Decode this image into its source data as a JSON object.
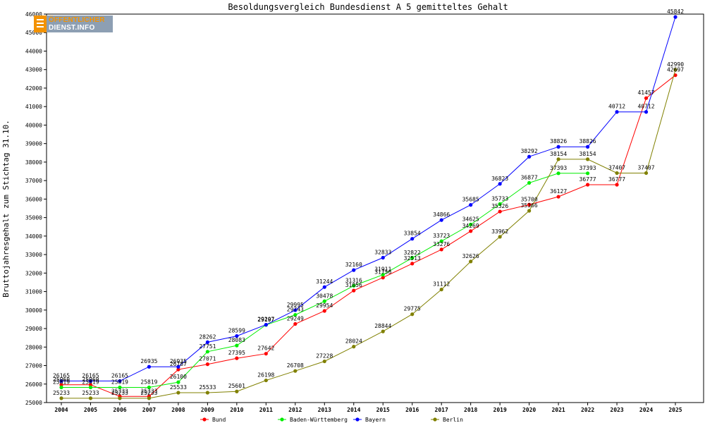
{
  "logo": {
    "line1": "ÖFFENTLICHER",
    "line2": "DIENST.INFO"
  },
  "chart_data": {
    "type": "line",
    "title": "Besoldungsvergleich Bundesdienst A 5 gemitteltes Gehalt",
    "xlabel": "",
    "ylabel": "Bruttojahresgehalt zum Stichtag 31.10.",
    "x": [
      "2004",
      "2005",
      "2006",
      "2007",
      "2008",
      "2009",
      "2010",
      "2011",
      "2012",
      "2013",
      "2014",
      "2015",
      "2016",
      "2017",
      "2018",
      "2019",
      "2020",
      "2021",
      "2022",
      "2023",
      "2024",
      "2025"
    ],
    "ylim": [
      25000,
      46000
    ],
    "yticks": [
      25000,
      26000,
      27000,
      28000,
      29000,
      30000,
      31000,
      32000,
      33000,
      34000,
      35000,
      36000,
      37000,
      38000,
      39000,
      40000,
      41000,
      42000,
      43000,
      44000,
      45000,
      46000
    ],
    "grid": false,
    "legend_position": "bottom",
    "series": [
      {
        "name": "Bund",
        "color": "#ff0000",
        "values": [
          25960,
          25960,
          25333,
          25333,
          26787,
          27071,
          27395,
          27642,
          29249,
          29954,
          31056,
          31756,
          32513,
          33276,
          34269,
          35326,
          35700,
          36127,
          36777,
          36777,
          41457,
          42697
        ]
      },
      {
        "name": "Baden-Württemberg",
        "color": "#00ee00",
        "values": [
          25819,
          25819,
          25819,
          25819,
          26100,
          27751,
          28083,
          29197,
          29743,
          30478,
          31316,
          31911,
          32822,
          33723,
          34625,
          35733,
          36877,
          37393,
          37393,
          null,
          null,
          null
        ]
      },
      {
        "name": "Bayern",
        "color": "#0000ff",
        "values": [
          26165,
          26165,
          26165,
          26935,
          26935,
          28262,
          28599,
          29207,
          29995,
          31244,
          32160,
          32833,
          33854,
          34866,
          35685,
          36823,
          38292,
          38826,
          38826,
          40712,
          40712,
          45842
        ]
      },
      {
        "name": "Berlin",
        "color": "#808000",
        "values": [
          25233,
          25233,
          25233,
          25233,
          25533,
          25533,
          25601,
          26198,
          26708,
          27228,
          28024,
          28844,
          29775,
          31112,
          32626,
          33962,
          35366,
          38154,
          38154,
          37407,
          37407,
          42990
        ]
      }
    ]
  }
}
